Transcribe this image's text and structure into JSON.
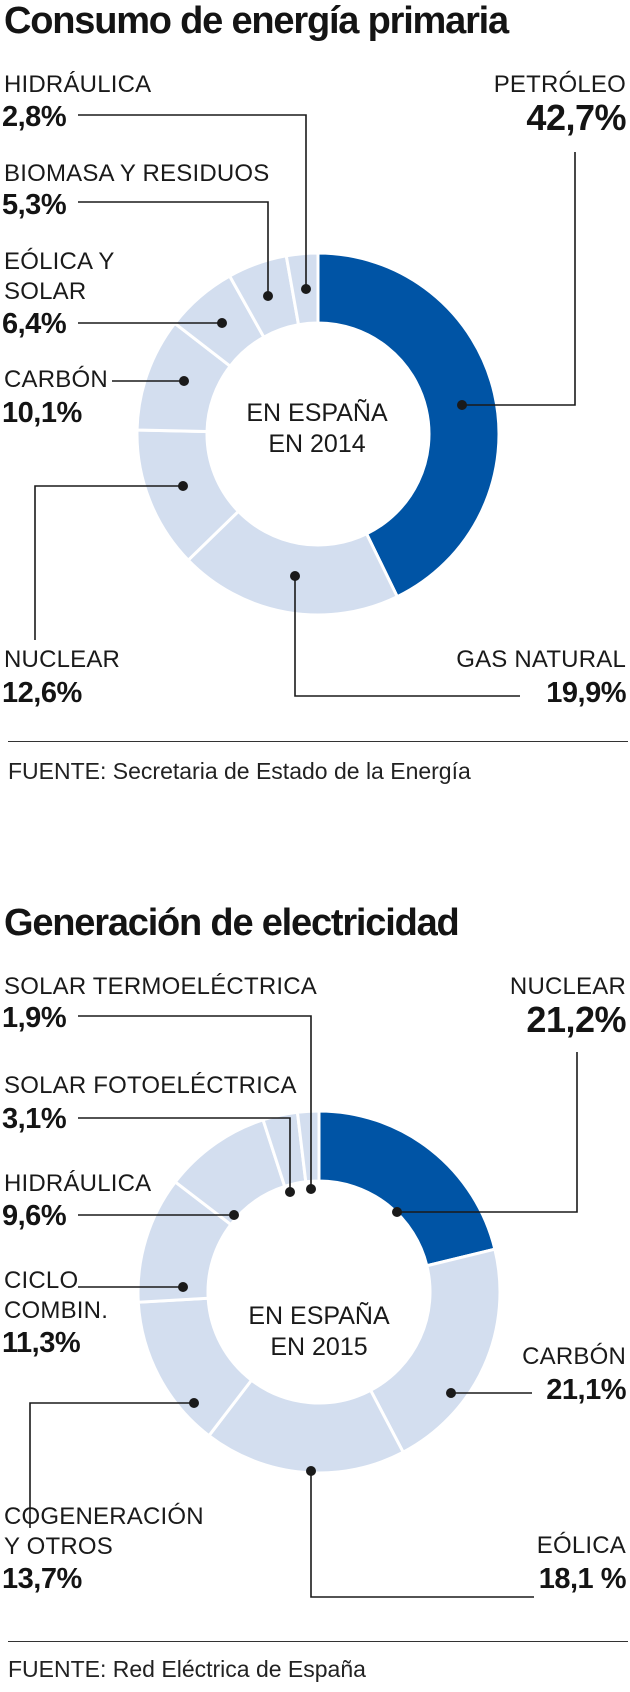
{
  "colors": {
    "highlight": "#0054a5",
    "muted": "#d3deef",
    "line": "#1a1a1a"
  },
  "charts": [
    {
      "title": "Consumo de energía primaria",
      "center_line1": "EN ESPAÑA",
      "center_line2": "EN 2014",
      "source": "FUENTE: Secretaria de Estado de la Energía"
    },
    {
      "title": "Generación de electricidad",
      "center_line1": "EN ESPAÑA",
      "center_line2": "EN 2015",
      "source": "FUENTE: Red Eléctrica de España"
    }
  ],
  "chart_data": [
    {
      "type": "pie",
      "title": "Consumo de energía primaria",
      "subtitle": "EN ESPAÑA EN 2014",
      "categories": [
        "PETRÓLEO",
        "GAS NATURAL",
        "NUCLEAR",
        "CARBÓN",
        "EÓLICA Y SOLAR",
        "BIOMASA Y RESIDUOS",
        "HIDRÁULICA"
      ],
      "values": [
        42.7,
        19.9,
        12.6,
        10.1,
        6.4,
        5.3,
        2.8
      ],
      "labels": [
        "42,7%",
        "19,9%",
        "12,6%",
        "10,1%",
        "6,4%",
        "5,3%",
        "2,8%"
      ],
      "highlighted": "PETRÓLEO"
    },
    {
      "type": "pie",
      "title": "Generación de electricidad",
      "subtitle": "EN ESPAÑA EN 2015",
      "categories": [
        "NUCLEAR",
        "CARBÓN",
        "EÓLICA",
        "COGENERACIÓN Y OTROS",
        "CICLO COMBIN.",
        "HIDRÁULICA",
        "SOLAR FOTOELÉCTRICA",
        "SOLAR TERMOELÉCTRICA"
      ],
      "values": [
        21.2,
        21.1,
        18.1,
        13.7,
        11.3,
        9.6,
        3.1,
        1.9
      ],
      "labels": [
        "21,2%",
        "21,1%",
        "18,1 %",
        "13,7%",
        "11,3%",
        "9,6%",
        "3,1%",
        "1,9%"
      ],
      "highlighted": "NUCLEAR"
    }
  ]
}
